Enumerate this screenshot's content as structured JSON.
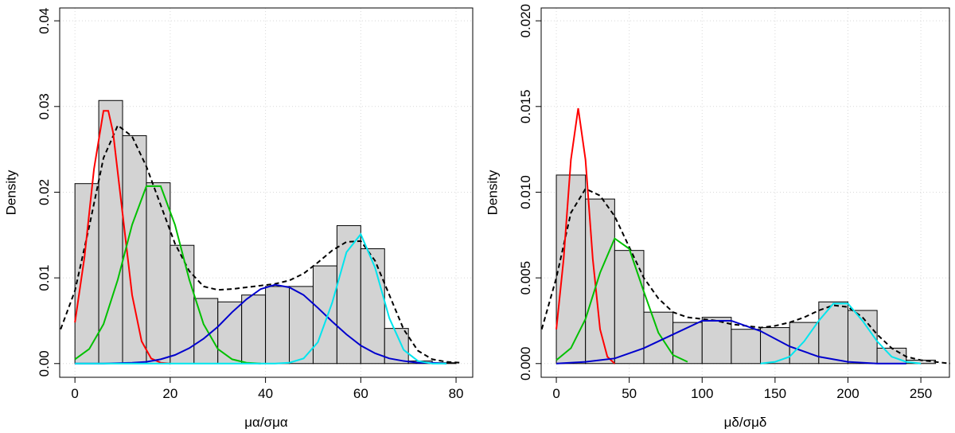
{
  "chart_data": [
    {
      "type": "histogram",
      "ylabel": "Density",
      "xlabel": "μα/σμα",
      "bins": [
        0,
        5,
        10,
        15,
        20,
        25,
        30,
        35,
        40,
        45,
        50,
        55,
        60,
        65,
        70,
        75,
        80
      ],
      "counts": [
        0.021,
        0.0307,
        0.0266,
        0.0211,
        0.0138,
        0.0076,
        0.0072,
        0.008,
        0.009,
        0.009,
        0.0114,
        0.0161,
        0.0134,
        0.0041,
        0.0003,
        0.0001
      ],
      "color": "#d3d3d3",
      "xlim": [
        -3.2,
        83.5
      ],
      "xticks": [
        0,
        20,
        40,
        60,
        80
      ],
      "ylim": [
        -0.0016,
        0.0415
      ],
      "yticks": [
        {
          "value": 0,
          "label": "0.00"
        },
        {
          "value": 0.01,
          "label": "0.01"
        },
        {
          "value": 0.02,
          "label": "0.02"
        },
        {
          "value": 0.03,
          "label": "0.03"
        },
        {
          "value": 0.04,
          "label": "0.04"
        }
      ],
      "grid": true,
      "curves": [
        {
          "color": "#000000",
          "linestyle": "dashed",
          "x": [
            -3,
            0,
            3,
            6,
            9,
            12,
            15,
            18,
            21,
            24,
            27,
            30,
            33,
            36,
            39,
            42,
            45,
            48,
            51,
            54,
            57,
            60,
            63,
            66,
            69,
            72,
            75,
            78,
            81
          ],
          "values": [
            0.004,
            0.0085,
            0.016,
            0.024,
            0.0278,
            0.0265,
            0.023,
            0.0185,
            0.014,
            0.0108,
            0.009,
            0.0086,
            0.0087,
            0.0089,
            0.0091,
            0.0093,
            0.0097,
            0.0105,
            0.0118,
            0.0132,
            0.0142,
            0.0143,
            0.012,
            0.008,
            0.004,
            0.0015,
            0.0005,
            0.0002,
            0.0001
          ]
        },
        {
          "color": "#ff0000",
          "linestyle": "solid",
          "x": [
            0,
            2,
            4,
            6,
            7,
            8,
            10,
            12,
            14,
            16,
            18,
            20
          ],
          "values": [
            0.0048,
            0.0124,
            0.0227,
            0.0295,
            0.0295,
            0.027,
            0.0175,
            0.008,
            0.0026,
            0.0006,
            0.0001,
            0
          ]
        },
        {
          "color": "#00c000",
          "linestyle": "solid",
          "x": [
            0,
            3,
            6,
            9,
            12,
            15,
            18,
            21,
            24,
            27,
            30,
            33,
            36,
            39
          ],
          "values": [
            0.0005,
            0.0017,
            0.0046,
            0.0098,
            0.0162,
            0.0207,
            0.0207,
            0.0162,
            0.0098,
            0.0046,
            0.0017,
            0.0005,
            0.0001,
            0
          ]
        },
        {
          "color": "#0000cd",
          "linestyle": "solid",
          "x": [
            0,
            6,
            12,
            15,
            18,
            21,
            24,
            27,
            30,
            33,
            36,
            39,
            42,
            45,
            48,
            51,
            54,
            57,
            60,
            63,
            66,
            69,
            72,
            75,
            78
          ],
          "values": [
            0,
            0,
            0.0001,
            0.0002,
            0.0005,
            0.001,
            0.0018,
            0.0029,
            0.0043,
            0.006,
            0.0075,
            0.0087,
            0.0092,
            0.0089,
            0.008,
            0.0065,
            0.0049,
            0.0034,
            0.0021,
            0.0012,
            0.0006,
            0.0003,
            0.0001,
            0.0001,
            0
          ]
        },
        {
          "color": "#00e5ee",
          "linestyle": "solid",
          "x": [
            0,
            42,
            45,
            48,
            51,
            54,
            57,
            60,
            63,
            66,
            69,
            72,
            75,
            78
          ],
          "values": [
            0,
            0,
            0.0001,
            0.0006,
            0.0025,
            0.0071,
            0.013,
            0.0151,
            0.0112,
            0.0053,
            0.0016,
            0.0003,
            0,
            0
          ]
        }
      ]
    },
    {
      "type": "histogram",
      "ylabel": "Density",
      "xlabel": "μδ/σμδ",
      "bins": [
        0,
        20,
        40,
        60,
        80,
        100,
        120,
        140,
        160,
        180,
        200,
        220,
        240,
        260
      ],
      "counts": [
        0.011,
        0.0096,
        0.0066,
        0.003,
        0.0024,
        0.0027,
        0.002,
        0.0021,
        0.0024,
        0.0036,
        0.0031,
        0.0009,
        0.0002
      ],
      "color": "#d3d3d3",
      "xlim": [
        -10.4,
        269.6
      ],
      "xticks": [
        0,
        50,
        100,
        150,
        200,
        250
      ],
      "ylim": [
        -0.0008,
        0.02075
      ],
      "yticks": [
        {
          "value": 0,
          "label": "0.000"
        },
        {
          "value": 0.005,
          "label": "0.005"
        },
        {
          "value": 0.01,
          "label": "0.010"
        },
        {
          "value": 0.015,
          "label": "0.015"
        },
        {
          "value": 0.02,
          "label": "0.020"
        }
      ],
      "grid": true,
      "curves": [
        {
          "color": "#000000",
          "linestyle": "dashed",
          "x": [
            -10,
            0,
            10,
            20,
            30,
            40,
            50,
            60,
            70,
            80,
            90,
            100,
            110,
            120,
            130,
            140,
            150,
            160,
            170,
            180,
            190,
            200,
            210,
            220,
            230,
            240,
            250,
            260,
            270
          ],
          "values": [
            0.002,
            0.005,
            0.0088,
            0.0102,
            0.0098,
            0.0086,
            0.0068,
            0.005,
            0.0038,
            0.003,
            0.0027,
            0.0026,
            0.0025,
            0.0023,
            0.0022,
            0.0021,
            0.0022,
            0.0024,
            0.0027,
            0.0031,
            0.0034,
            0.0033,
            0.0027,
            0.0017,
            0.0009,
            0.0004,
            0.0002,
            0.0001,
            0
          ]
        },
        {
          "color": "#ff0000",
          "linestyle": "solid",
          "x": [
            0,
            5,
            10,
            15,
            20,
            25,
            30,
            35,
            40
          ],
          "values": [
            0.002,
            0.0061,
            0.0119,
            0.0149,
            0.0119,
            0.0061,
            0.002,
            0.0004,
            0
          ]
        },
        {
          "color": "#00c000",
          "linestyle": "solid",
          "x": [
            0,
            10,
            20,
            30,
            40,
            50,
            60,
            70,
            80,
            90
          ],
          "values": [
            0.0002,
            0.0009,
            0.0026,
            0.0053,
            0.0073,
            0.0067,
            0.0042,
            0.0018,
            0.0005,
            0.0001
          ]
        },
        {
          "color": "#0000cd",
          "linestyle": "solid",
          "x": [
            0,
            20,
            40,
            60,
            80,
            100,
            120,
            140,
            160,
            180,
            200,
            220,
            240
          ],
          "values": [
            0,
            0.0001,
            0.0003,
            0.0009,
            0.0017,
            0.0025,
            0.0025,
            0.0019,
            0.001,
            0.0004,
            0.0001,
            0,
            0
          ]
        },
        {
          "color": "#00e5ee",
          "linestyle": "solid",
          "x": [
            140,
            150,
            160,
            170,
            180,
            190,
            200,
            210,
            220,
            230,
            240,
            250
          ],
          "values": [
            0,
            0.0001,
            0.0004,
            0.0013,
            0.0025,
            0.0035,
            0.0035,
            0.0025,
            0.0013,
            0.0004,
            0.0001,
            0
          ]
        }
      ]
    }
  ]
}
